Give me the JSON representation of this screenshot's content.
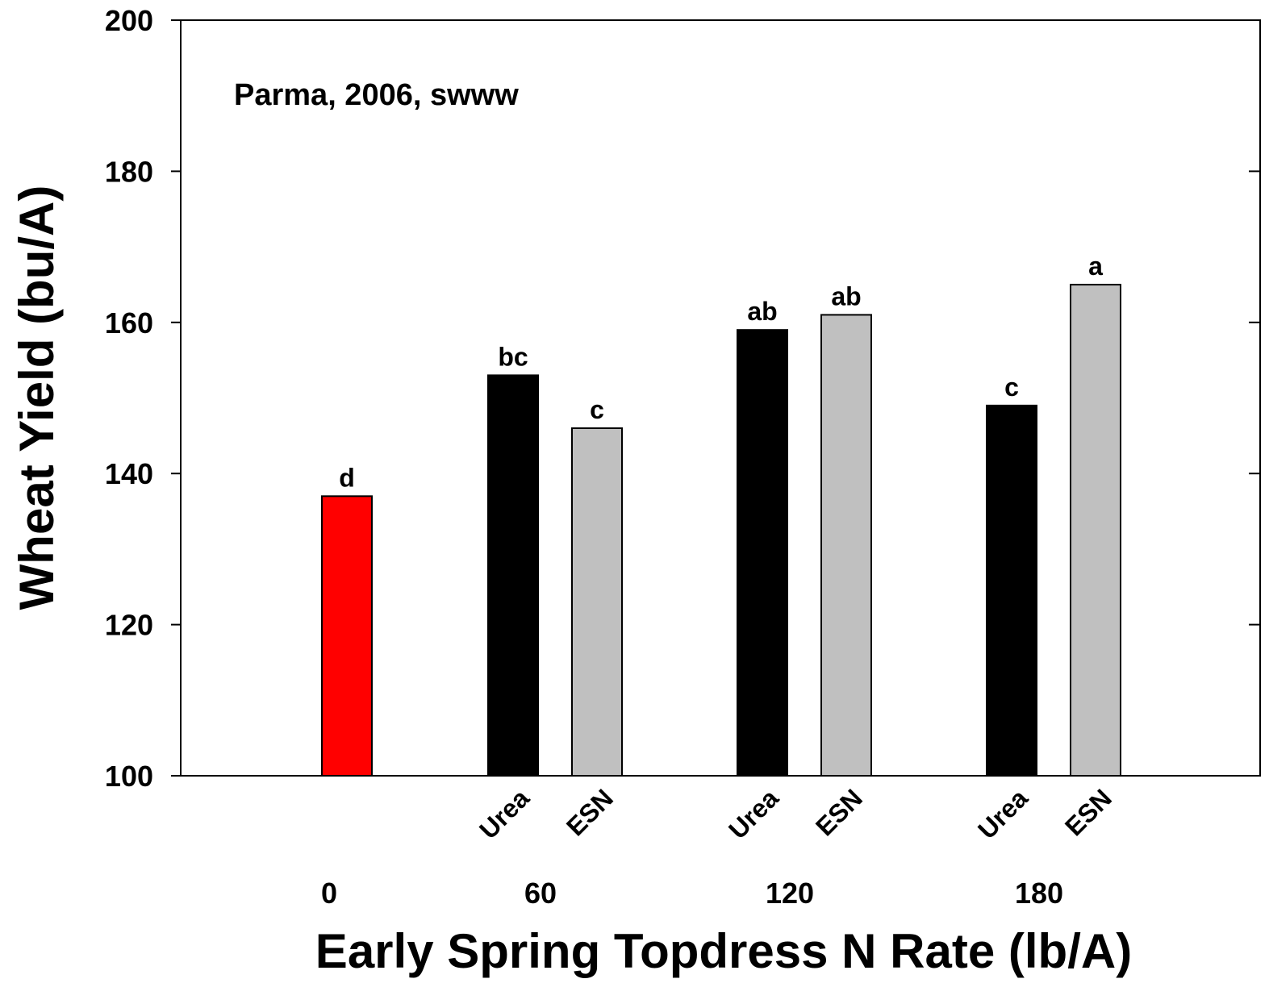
{
  "chart_data": {
    "type": "bar",
    "annotation": "Parma, 2006, swww",
    "x_label": "Early Spring Topdress N Rate (lb/A)",
    "y_label": "Wheat Yield (bu/A)",
    "categories": [
      "0",
      "60",
      "120",
      "180"
    ],
    "series": [
      {
        "color": "#ff0000",
        "values": [
          137,
          null,
          null,
          null
        ],
        "letters": [
          "d",
          null,
          null,
          null
        ]
      },
      {
        "name": "Urea",
        "color": "#000000",
        "values": [
          null,
          153,
          159,
          149
        ],
        "letters": [
          null,
          "bc",
          "ab",
          "c"
        ]
      },
      {
        "name": "ESN",
        "color": "#c0c0c0",
        "values": [
          null,
          146,
          161,
          165
        ],
        "letters": [
          null,
          "c",
          "ab",
          "a"
        ]
      }
    ],
    "ylim": [
      100,
      200
    ],
    "yticks": [
      100,
      120,
      140,
      160,
      180,
      200
    ]
  }
}
